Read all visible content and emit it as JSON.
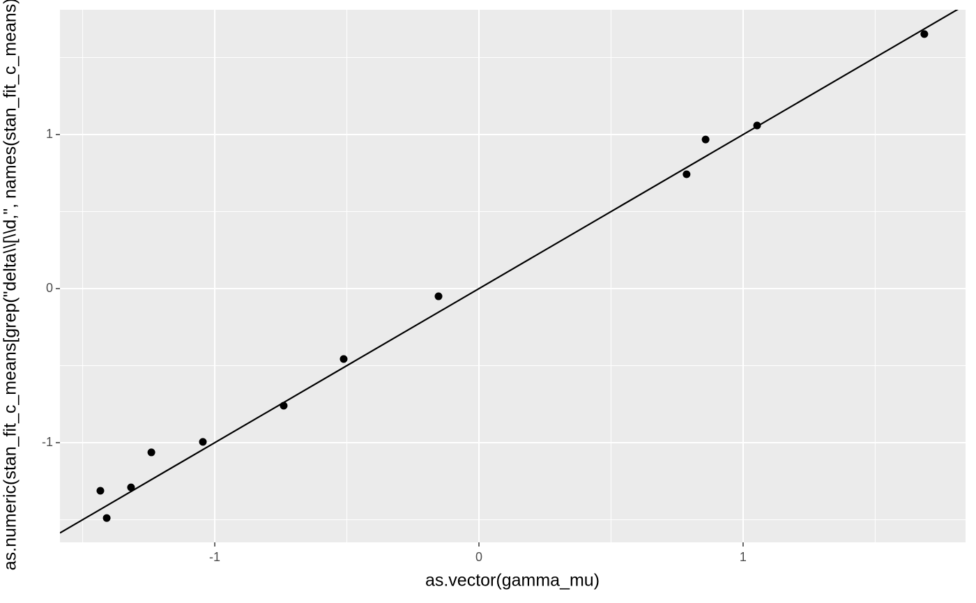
{
  "chart_data": {
    "type": "scatter",
    "x_label": "as.vector(gamma_mu)",
    "y_label": "as.numeric(stan_fit_c_means[grep(\"delta\\\\[\\\\d,\", names(stan_fit_c_means))])",
    "x": [
      -1.433,
      -1.409,
      -1.317,
      -1.24,
      -1.045,
      -0.739,
      -0.512,
      -0.153,
      0.786,
      0.858,
      1.053,
      1.686
    ],
    "values": [
      -1.312,
      -1.489,
      -1.29,
      -1.063,
      -0.995,
      -0.76,
      -0.457,
      -0.05,
      0.742,
      0.968,
      1.059,
      1.652
    ],
    "color": "#000000",
    "reference_line": {
      "slope": 1,
      "intercept": 0,
      "color": "#000000"
    },
    "xlim": [
      -1.586,
      1.842
    ],
    "ylim": [
      -1.647,
      1.81
    ],
    "xticks": [
      -1,
      0,
      1
    ],
    "yticks": [
      -1,
      0,
      1
    ],
    "x_minor_grid": [
      -1.5,
      -0.5,
      0.5,
      1.5
    ],
    "y_minor_grid": [
      -1.5,
      -0.5,
      0.5,
      1.5
    ],
    "grid": true
  }
}
